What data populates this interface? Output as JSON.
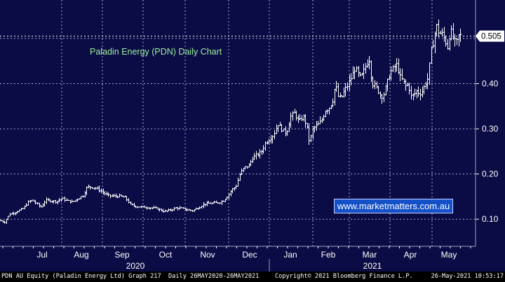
{
  "chart_data": {
    "type": "ohlc",
    "title": "Paladin Energy (PDN) Daily Chart",
    "last_price_label": "0.505",
    "y_ticks": [
      0.1,
      0.2,
      0.3,
      0.4
    ],
    "y_tick_labels": [
      "0.10",
      "0.20",
      "0.30",
      "0.40"
    ],
    "ylim": [
      0.04,
      0.585
    ],
    "x_tick_labels": [
      "Jul",
      "Aug",
      "Sep",
      "Oct",
      "Nov",
      "Dec",
      "Jan",
      "Feb",
      "Mar",
      "Apr",
      "May"
    ],
    "year_labels": [
      "2020",
      "2021"
    ],
    "grid": true,
    "series_color": "#ffffff",
    "background": "#0b0b45",
    "price_path": [
      [
        0,
        0.097
      ],
      [
        6,
        0.093
      ],
      [
        10,
        0.103
      ],
      [
        14,
        0.112
      ],
      [
        20,
        0.114
      ],
      [
        25,
        0.118
      ],
      [
        33,
        0.124
      ],
      [
        40,
        0.138
      ],
      [
        46,
        0.142
      ],
      [
        52,
        0.134
      ],
      [
        58,
        0.127
      ],
      [
        65,
        0.142
      ],
      [
        72,
        0.141
      ],
      [
        80,
        0.139
      ],
      [
        88,
        0.146
      ],
      [
        95,
        0.141
      ],
      [
        103,
        0.138
      ],
      [
        110,
        0.145
      ],
      [
        118,
        0.152
      ],
      [
        124,
        0.172
      ],
      [
        130,
        0.171
      ],
      [
        138,
        0.168
      ],
      [
        146,
        0.16
      ],
      [
        154,
        0.152
      ],
      [
        162,
        0.151
      ],
      [
        170,
        0.151
      ],
      [
        178,
        0.148
      ],
      [
        186,
        0.132
      ],
      [
        194,
        0.128
      ],
      [
        202,
        0.127
      ],
      [
        210,
        0.126
      ],
      [
        218,
        0.125
      ],
      [
        226,
        0.122
      ],
      [
        234,
        0.117
      ],
      [
        242,
        0.12
      ],
      [
        250,
        0.125
      ],
      [
        258,
        0.124
      ],
      [
        266,
        0.121
      ],
      [
        274,
        0.119
      ],
      [
        282,
        0.125
      ],
      [
        290,
        0.133
      ],
      [
        298,
        0.135
      ],
      [
        306,
        0.136
      ],
      [
        312,
        0.137
      ],
      [
        318,
        0.141
      ],
      [
        324,
        0.151
      ],
      [
        330,
        0.165
      ],
      [
        336,
        0.172
      ],
      [
        342,
        0.201
      ],
      [
        348,
        0.214
      ],
      [
        354,
        0.218
      ],
      [
        360,
        0.236
      ],
      [
        366,
        0.242
      ],
      [
        372,
        0.248
      ],
      [
        378,
        0.268
      ],
      [
        384,
        0.278
      ],
      [
        390,
        0.288
      ],
      [
        396,
        0.311
      ],
      [
        402,
        0.298
      ],
      [
        408,
        0.29
      ],
      [
        414,
        0.327
      ],
      [
        420,
        0.335
      ],
      [
        426,
        0.315
      ],
      [
        432,
        0.328
      ],
      [
        437,
        0.307
      ],
      [
        441,
        0.27
      ],
      [
        446,
        0.301
      ],
      [
        452,
        0.307
      ],
      [
        458,
        0.318
      ],
      [
        464,
        0.342
      ],
      [
        468,
        0.344
      ],
      [
        474,
        0.362
      ],
      [
        478,
        0.398
      ],
      [
        482,
        0.372
      ],
      [
        486,
        0.367
      ],
      [
        490,
        0.382
      ],
      [
        496,
        0.398
      ],
      [
        502,
        0.418
      ],
      [
        506,
        0.435
      ],
      [
        510,
        0.422
      ],
      [
        514,
        0.412
      ],
      [
        518,
        0.426
      ],
      [
        522,
        0.442
      ],
      [
        526,
        0.456
      ],
      [
        530,
        0.402
      ],
      [
        534,
        0.395
      ],
      [
        538,
        0.387
      ],
      [
        542,
        0.375
      ],
      [
        546,
        0.372
      ],
      [
        550,
        0.392
      ],
      [
        556,
        0.425
      ],
      [
        562,
        0.436
      ],
      [
        566,
        0.442
      ],
      [
        570,
        0.415
      ],
      [
        574,
        0.406
      ],
      [
        578,
        0.395
      ],
      [
        582,
        0.398
      ],
      [
        586,
        0.372
      ],
      [
        590,
        0.376
      ],
      [
        594,
        0.384
      ],
      [
        598,
        0.378
      ],
      [
        602,
        0.384
      ],
      [
        606,
        0.399
      ],
      [
        610,
        0.412
      ],
      [
        614,
        0.468
      ],
      [
        618,
        0.496
      ],
      [
        622,
        0.528
      ],
      [
        626,
        0.511
      ],
      [
        630,
        0.51
      ],
      [
        634,
        0.498
      ],
      [
        638,
        0.481
      ],
      [
        642,
        0.519
      ],
      [
        646,
        0.501
      ],
      [
        650,
        0.486
      ],
      [
        654,
        0.508
      ],
      [
        658,
        0.505
      ]
    ]
  },
  "watermark": "www.marketmatters.com.au",
  "footer": {
    "left": "PDN AU Equity (Paladin Energy Ltd) Graph 217  Daily 26MAY2020-26MAY2021",
    "center": "Copyright© 2021 Bloomberg Finance L.P.",
    "right": "26-May-2021 10:53:17"
  }
}
